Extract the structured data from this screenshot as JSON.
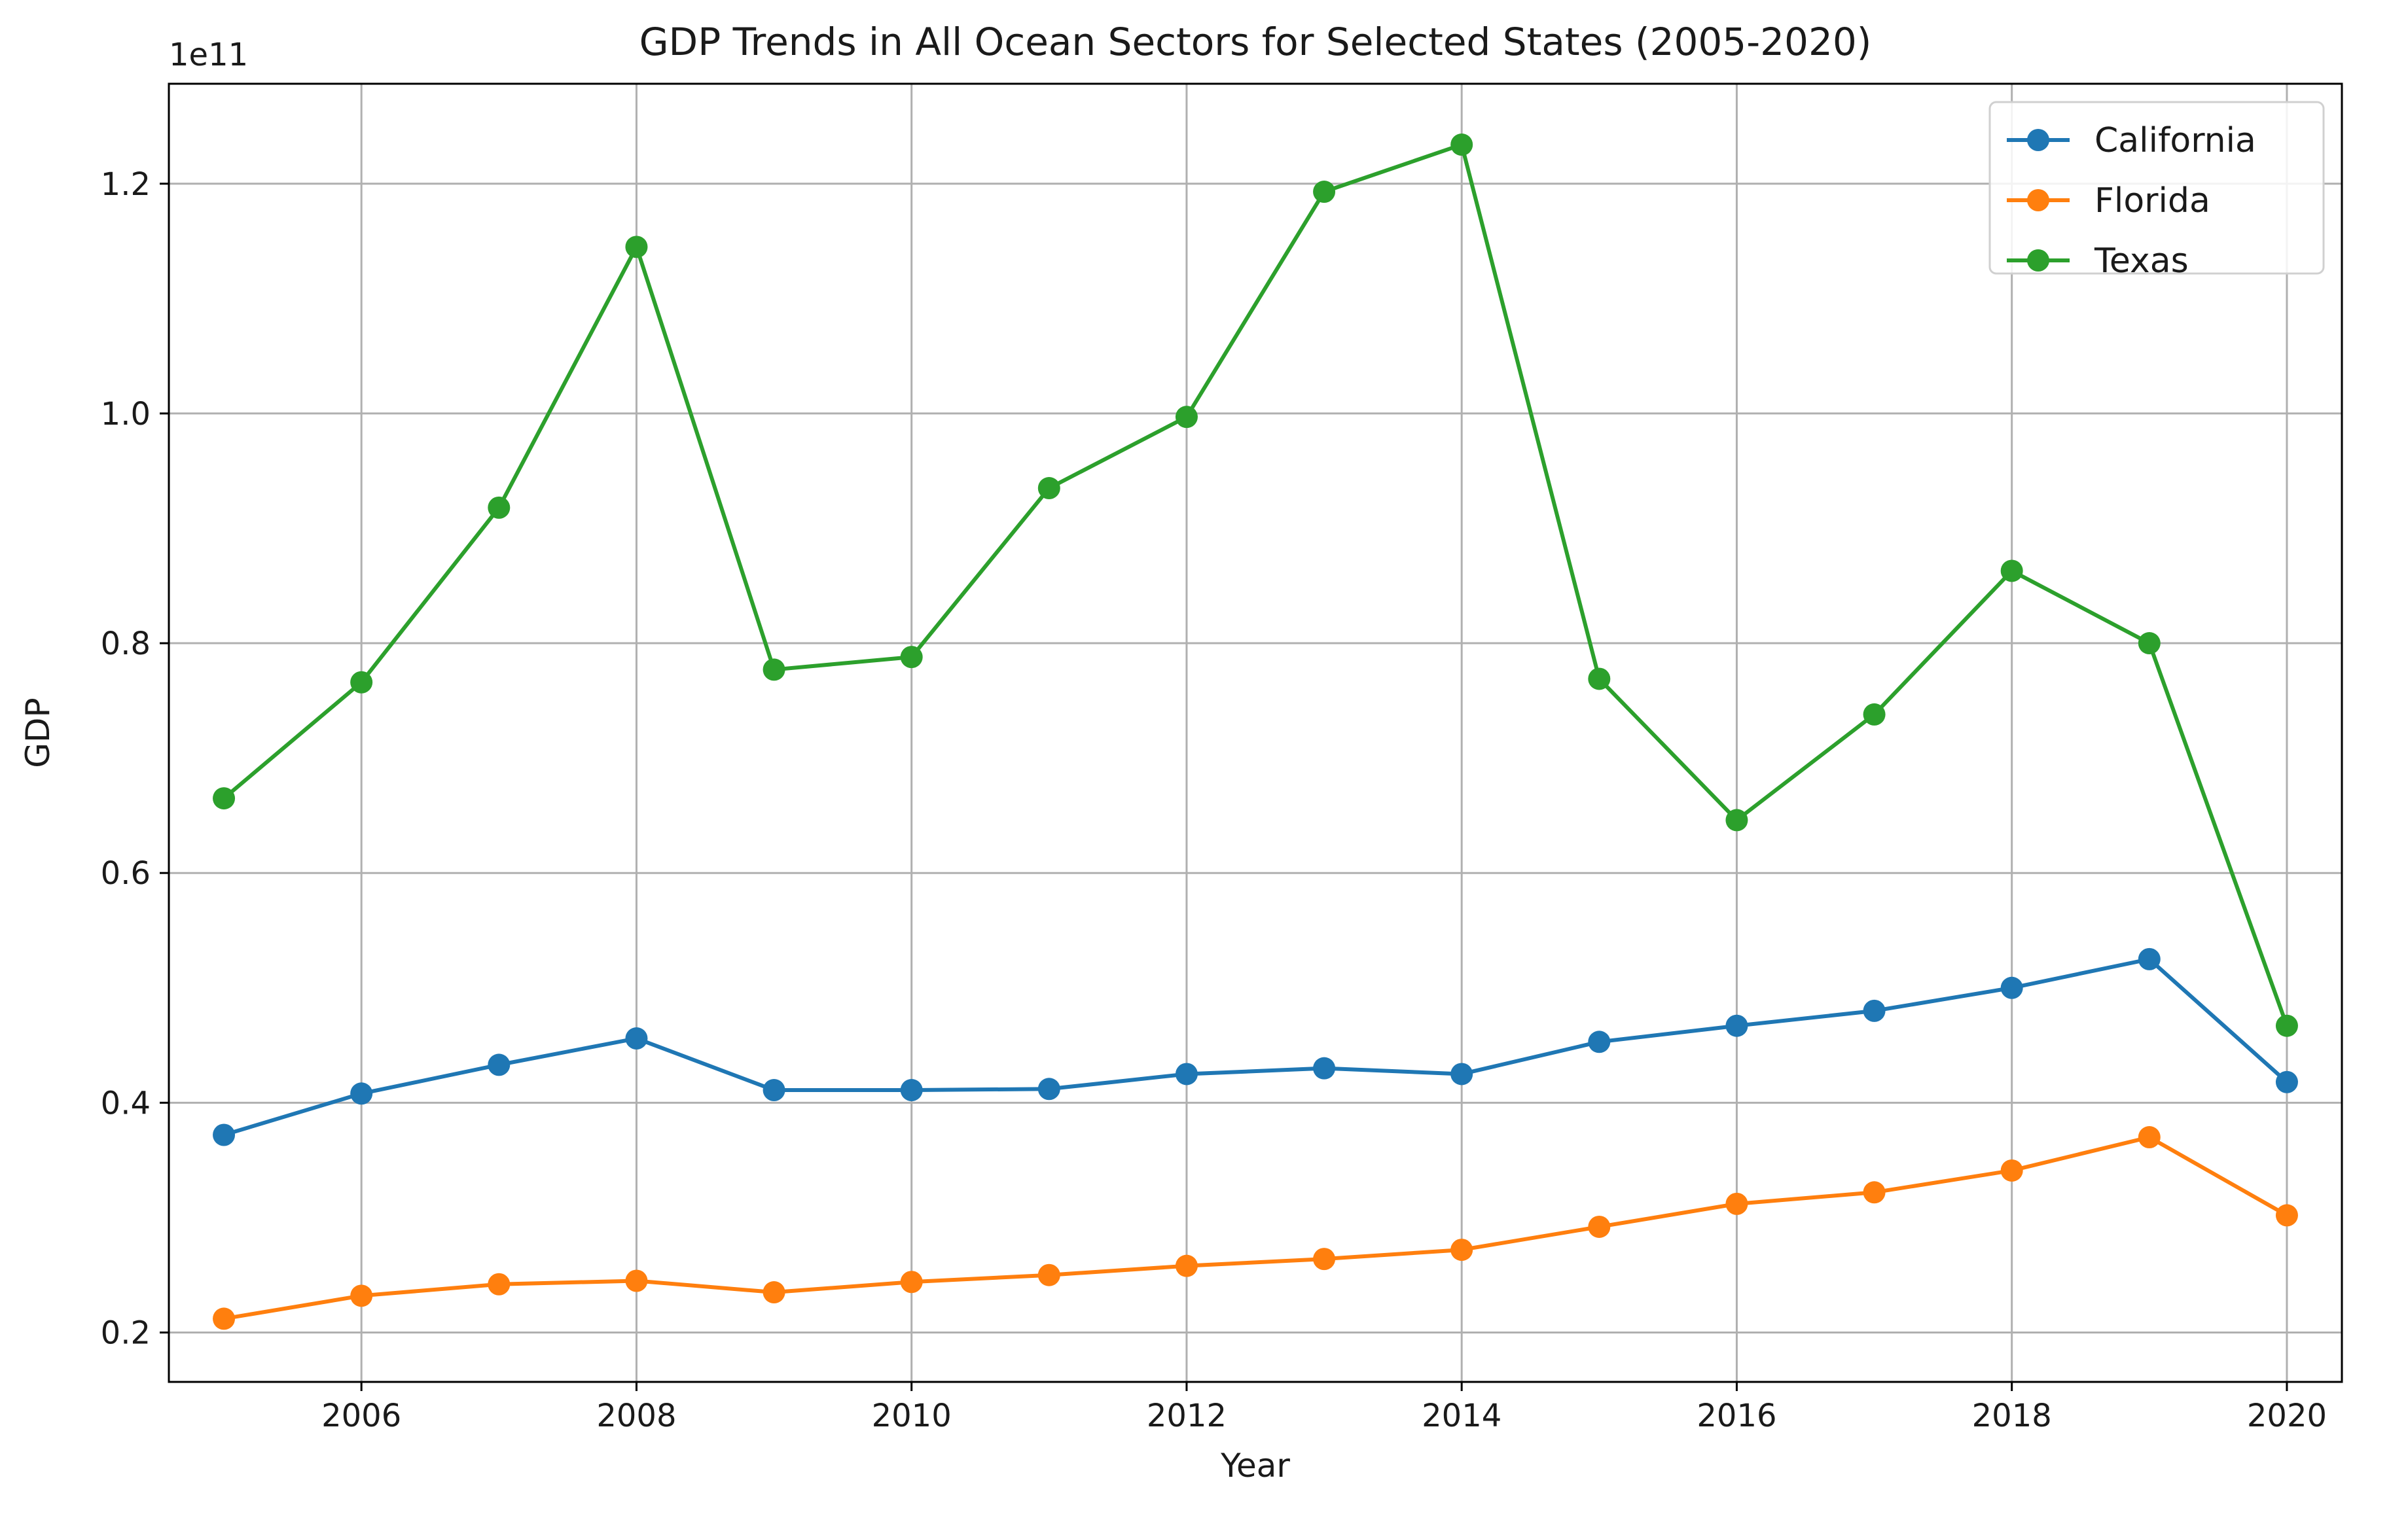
{
  "chart_data": {
    "type": "line",
    "title": "GDP Trends in All Ocean Sectors for Selected States (2005-2020)",
    "xlabel": "Year",
    "ylabel": "GDP",
    "y_offset_label": "1e11",
    "x": [
      2005,
      2006,
      2007,
      2008,
      2009,
      2010,
      2011,
      2012,
      2013,
      2014,
      2015,
      2016,
      2017,
      2018,
      2019,
      2020
    ],
    "xlim": [
      2004.6,
      2020.4
    ],
    "ylim": [
      0.157,
      1.287
    ],
    "x_ticks": [
      {
        "value": 2006,
        "label": "2006"
      },
      {
        "value": 2008,
        "label": "2008"
      },
      {
        "value": 2010,
        "label": "2010"
      },
      {
        "value": 2012,
        "label": "2012"
      },
      {
        "value": 2014,
        "label": "2014"
      },
      {
        "value": 2016,
        "label": "2016"
      },
      {
        "value": 2018,
        "label": "2018"
      },
      {
        "value": 2020,
        "label": "2020"
      }
    ],
    "y_ticks": [
      {
        "value": 0.2,
        "label": "0.2"
      },
      {
        "value": 0.4,
        "label": "0.4"
      },
      {
        "value": 0.6,
        "label": "0.6"
      },
      {
        "value": 0.8,
        "label": "0.8"
      },
      {
        "value": 1.0,
        "label": "1.0"
      },
      {
        "value": 1.2,
        "label": "1.2"
      }
    ],
    "grid": true,
    "legend_position": "top-right",
    "series": [
      {
        "name": "California",
        "color": "#1f77b4",
        "values": [
          0.372,
          0.408,
          0.433,
          0.456,
          0.411,
          0.411,
          0.412,
          0.425,
          0.43,
          0.425,
          0.453,
          0.467,
          0.48,
          0.5,
          0.525,
          0.418
        ]
      },
      {
        "name": "Florida",
        "color": "#ff7f0e",
        "values": [
          0.212,
          0.232,
          0.242,
          0.245,
          0.235,
          0.244,
          0.25,
          0.258,
          0.264,
          0.272,
          0.292,
          0.312,
          0.322,
          0.341,
          0.37,
          0.302
        ]
      },
      {
        "name": "Texas",
        "color": "#2ca02c",
        "values": [
          0.665,
          0.766,
          0.918,
          1.145,
          0.777,
          0.788,
          0.935,
          0.997,
          1.193,
          1.234,
          0.769,
          0.646,
          0.738,
          0.863,
          0.8,
          0.467
        ]
      }
    ]
  }
}
